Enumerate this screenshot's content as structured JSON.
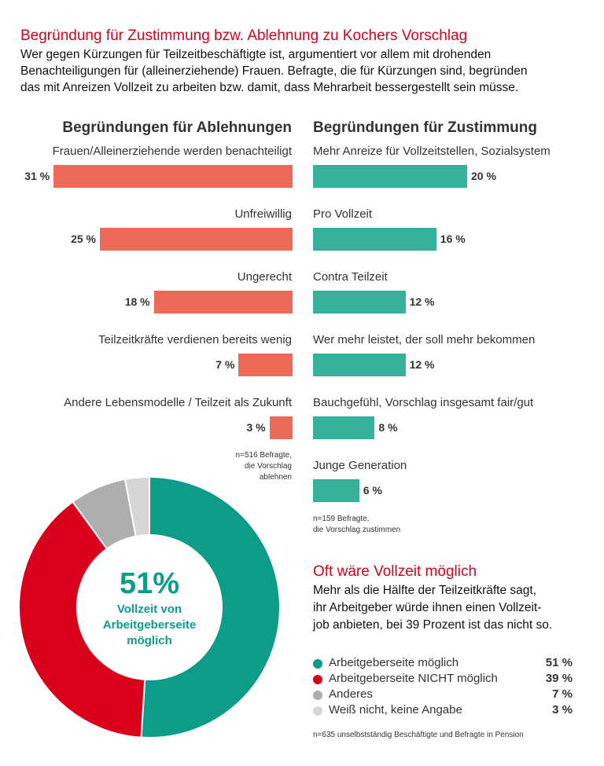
{
  "header": {
    "title": "Begründung für Zustimmung bzw. Ablehnung zu Kochers Vorschlag",
    "intro_lines": [
      "Wer gegen Kürzungen für Teilzeitbeschäftigte ist, argumentiert vor allem mit drohenden",
      "Benachteiligungen für (alleinerziehende) Frauen. Befragte, die für Kürzungen sind, begründen",
      "das mit Anreizen Vollzeit zu arbeiten bzw. damit, dass Mehrarbeit bessergestellt sein müsse."
    ]
  },
  "chart_data": [
    {
      "type": "bar",
      "orientation": "horizontal",
      "direction": "right-to-left",
      "title": "Begründungen für Ablehnungen",
      "categories": [
        "Frauen/Alleinerziehende werden benachteiligt",
        "Unfreiwillig",
        "Ungerecht",
        "Teilzeitkräfte verdienen bereits wenig",
        "Andere Lebensmodelle / Teilzeit als Zukunft"
      ],
      "values": [
        31,
        25,
        18,
        7,
        3
      ],
      "labels": [
        "31 %",
        "25 %",
        "18 %",
        "7 %",
        "3 %"
      ],
      "unit": "%",
      "color": "#ec6a57",
      "note": [
        "n=516 Befragte,",
        "die Vorschlag",
        "ablehnen"
      ]
    },
    {
      "type": "bar",
      "orientation": "horizontal",
      "title": "Begründungen für Zustimmung",
      "categories": [
        "Mehr Anreize für Vollzeitstellen, Sozialsystem",
        "Pro Vollzeit",
        "Contra Teilzeit",
        "Wer mehr leistet, der soll mehr bekommen",
        "Bauchgefühl, Vorschlag insgesamt fair/gut",
        "Junge Generation"
      ],
      "values": [
        20,
        16,
        12,
        12,
        8,
        6
      ],
      "labels": [
        "20 %",
        "16 %",
        "12 %",
        "12 %",
        "8 %",
        "6 %"
      ],
      "unit": "%",
      "color": "#36b29b",
      "note": [
        "n=159 Befragte,",
        "die Vorschlag zustimmen"
      ]
    },
    {
      "type": "pie",
      "variant": "donut",
      "title": "Oft wäre Vollzeit möglich",
      "center_value": "51%",
      "center_label": [
        "Vollzeit von",
        "Arbeitgeberseite",
        "möglich"
      ],
      "series": [
        {
          "name": "Arbeitgeberseite möglich",
          "value": 51,
          "label": "51 %",
          "color": "#0d9c87"
        },
        {
          "name": "Arbeitgeberseite NICHT möglich",
          "value": 39,
          "label": "39 %",
          "color": "#d9001b"
        },
        {
          "name": "Anderes",
          "value": 7,
          "label": "7 %",
          "color": "#aeaeae"
        },
        {
          "name": "Weiß nicht, keine Angabe",
          "value": 3,
          "label": "3 %",
          "color": "#d6d6d6"
        }
      ],
      "description_lines": [
        "Mehr als die Hälfte der Teilzeitkräfte sagt,",
        "ihr Arbeitgeber würde ihnen einen Vollzeit-",
        "job anbieten, bei 39 Prozent ist das nicht so."
      ],
      "note": "n=635 unselbstständig Beschäftigte und Befragte in Pension"
    }
  ]
}
